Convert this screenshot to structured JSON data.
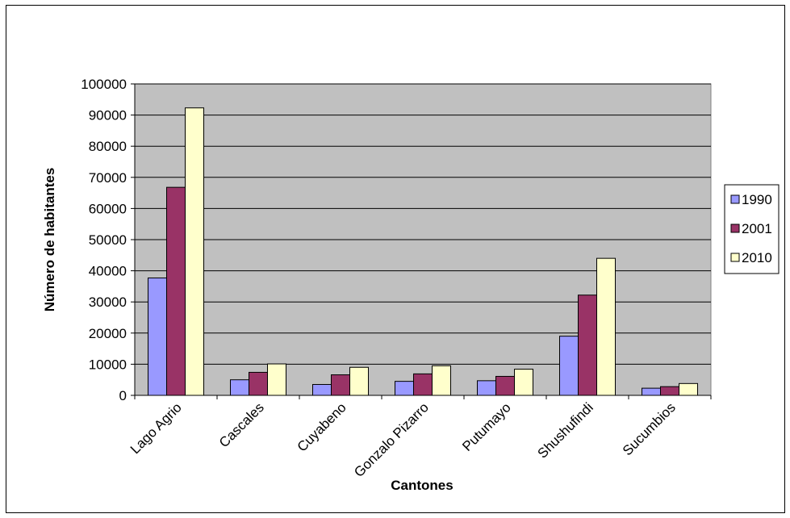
{
  "chart_data": {
    "type": "bar",
    "title": "",
    "xlabel": "Cantones",
    "ylabel": "Número de habitantes",
    "categories": [
      "Lago Agrio",
      "Cascales",
      "Cuyabeno",
      "Gonzalo Pizarro",
      "Putumayo",
      "Shushufindi",
      "Sucumbios"
    ],
    "series": [
      {
        "name": "1990",
        "color": "#9999ff",
        "values": [
          37700,
          5000,
          3500,
          4500,
          4700,
          19000,
          2300
        ]
      },
      {
        "name": "2001",
        "color": "#993366",
        "values": [
          66800,
          7400,
          6600,
          6900,
          6100,
          32200,
          2800
        ]
      },
      {
        "name": "2010",
        "color": "#ffffcc",
        "values": [
          92300,
          10100,
          9000,
          9500,
          8400,
          44000,
          3800
        ]
      }
    ],
    "ylim": [
      0,
      100000
    ],
    "yticks": [
      0,
      10000,
      20000,
      30000,
      40000,
      50000,
      60000,
      70000,
      80000,
      90000,
      100000
    ],
    "grid": true,
    "plot_background": "#c0c0c0",
    "legend_position": "right"
  }
}
